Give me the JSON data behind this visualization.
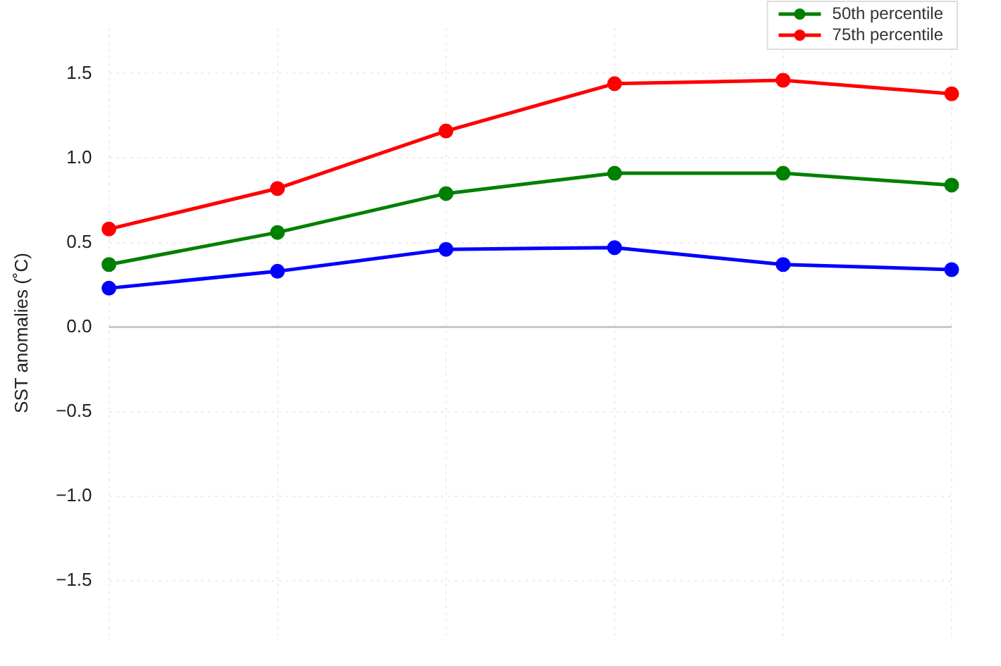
{
  "chart_data": {
    "type": "line",
    "ylabel": "SST anomalies (˚C)",
    "categories": [
      null,
      null,
      null,
      null,
      null,
      null
    ],
    "series": [
      {
        "color": "#0000ff",
        "values": [
          0.23,
          0.33,
          0.46,
          0.47,
          0.37,
          0.34
        ]
      },
      {
        "name": "50th percentile",
        "color": "#008000",
        "values": [
          0.37,
          0.56,
          0.79,
          0.91,
          0.91,
          0.84
        ]
      },
      {
        "name": "75th percentile",
        "color": "#ff0000",
        "values": [
          0.58,
          0.82,
          1.16,
          1.44,
          1.46,
          1.38
        ]
      }
    ],
    "ylim": [
      -1.84,
      1.77
    ],
    "yticks": [
      {
        "value": -1.5,
        "label": "−1.5"
      },
      {
        "value": -1,
        "label": "−1.0"
      },
      {
        "value": -0.5,
        "label": "−0.5"
      },
      {
        "value": 0,
        "label": "0.0"
      },
      {
        "value": 0.5,
        "label": "0.5"
      },
      {
        "value": 1,
        "label": "1.0"
      },
      {
        "value": 1.5,
        "label": "1.5"
      }
    ],
    "ref_lines": [
      {
        "axis": "y",
        "value": 0,
        "color": "#c8c8c8"
      }
    ],
    "grid": true,
    "legend": "top right",
    "marker": "circle",
    "line_style": "solid"
  }
}
